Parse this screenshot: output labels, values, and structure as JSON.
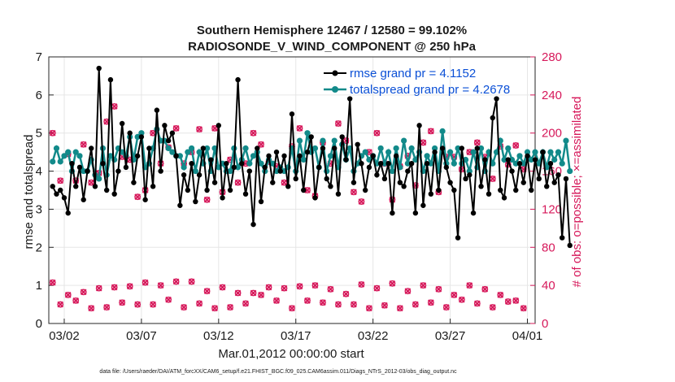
{
  "chart_data": {
    "type": "line",
    "title": "Southern Hemisphere 12467 / 12580 = 99.102%",
    "subtitle": "RADIOSONDE_V_WIND_COMPONENT @ 250 hPa",
    "xlabel": "Mar.01,2012 00:00:00 start",
    "ylabel": "rmse and totalspread",
    "y2label": "# of obs: o=possible; ×=assimilated",
    "xlim": [
      0,
      31.5
    ],
    "ylim": [
      0,
      7
    ],
    "y2lim": [
      0,
      280
    ],
    "x_ticks": [
      {
        "pos": 1,
        "label": "03/02"
      },
      {
        "pos": 6,
        "label": "03/07"
      },
      {
        "pos": 11,
        "label": "03/12"
      },
      {
        "pos": 16,
        "label": "03/17"
      },
      {
        "pos": 21,
        "label": "03/22"
      },
      {
        "pos": 26,
        "label": "03/27"
      },
      {
        "pos": 31,
        "label": "04/01"
      }
    ],
    "y_ticks": [
      0,
      1,
      2,
      3,
      4,
      5,
      6,
      7
    ],
    "y2_ticks": [
      0,
      40,
      80,
      120,
      160,
      200,
      240,
      280
    ],
    "legend_position": "top-right",
    "footnote": "data file: /Users/raeder/DAI/ATM_forcXX/CAM6_setup/f.e21.FHIST_BGC.f09_025.CAM6assim.011/Diags_NTrS_2012-03/obs_diag_output.nc",
    "colors": {
      "rmse": "#000000",
      "spread": "#128a8a",
      "obs": "#d6185a",
      "legend_text": "#0a4fd6"
    },
    "series": [
      {
        "name": "rmse grand pr = 4.1152",
        "x_start": 0.25,
        "x_step": 0.25,
        "values": [
          3.6,
          3.4,
          3.5,
          3.3,
          2.9,
          4.2,
          3.6,
          4.1,
          3.25,
          4.0,
          4.6,
          3.6,
          6.7,
          4.2,
          3.5,
          6.4,
          3.4,
          4.0,
          5.25,
          4.1,
          5.0,
          3.7,
          4.4,
          4.9,
          3.25,
          4.6,
          3.6,
          5.6,
          4.0,
          5.2,
          4.8,
          5.0,
          4.4,
          3.1,
          3.9,
          3.5,
          4.2,
          3.2,
          3.9,
          4.6,
          3.5,
          4.3,
          3.7,
          5.2,
          3.3,
          4.2,
          3.5,
          4.1,
          6.4,
          4.2,
          3.4,
          4.0,
          2.6,
          4.6,
          3.2,
          4.1,
          4.4,
          3.7,
          4.5,
          4.0,
          4.4,
          3.6,
          5.5,
          3.8,
          4.4,
          3.5,
          4.5,
          4.9,
          3.3,
          4.1,
          4.6,
          3.8,
          3.6,
          4.6,
          3.4,
          4.9,
          4.3,
          5.9,
          3.7,
          4.7,
          4.2,
          3.5,
          4.1,
          4.4,
          3.9,
          4.2,
          3.8,
          4.2,
          2.9,
          4.4,
          3.7,
          3.6,
          4.0,
          4.2,
          2.9,
          5.2,
          3.1,
          4.2,
          3.4,
          4.5,
          3.5,
          4.6,
          4.1,
          3.7,
          3.5,
          2.25,
          4.6,
          3.8,
          3.9,
          2.9,
          4.6,
          3.6,
          4.3,
          3.4,
          5.4,
          5.9,
          3.5,
          3.3,
          4.3,
          4.0,
          3.5,
          4.2,
          3.7,
          4.4,
          3.5,
          4.3,
          3.8,
          4.5,
          3.6,
          4.2,
          3.7,
          3.9,
          2.25,
          3.8,
          2.05
        ]
      },
      {
        "name": "totalspread grand pr = 4.2678",
        "x_start": 0.25,
        "x_step": 0.25,
        "values": [
          4.25,
          4.6,
          4.25,
          4.4,
          4.5,
          4.0,
          4.5,
          4.4,
          4.0,
          4.0,
          4.3,
          3.9,
          3.8,
          4.6,
          3.9,
          4.4,
          4.3,
          4.6,
          4.5,
          4.4,
          4.9,
          4.3,
          4.9,
          5.0,
          4.1,
          4.2,
          4.6,
          5.1,
          4.8,
          4.8,
          4.6,
          4.5,
          4.4,
          4.4,
          4.1,
          4.5,
          4.6,
          4.0,
          4.5,
          4.2,
          4.6,
          4.0,
          4.6,
          4.1,
          4.2,
          4.0,
          4.0,
          4.6,
          4.1,
          4.3,
          4.6,
          4.2,
          4.4,
          4.5,
          4.2,
          4.0,
          4.3,
          4.2,
          4.0,
          4.1,
          4.0,
          4.1,
          4.6,
          4.0,
          4.8,
          4.3,
          5.0,
          4.5,
          4.6,
          4.1,
          4.8,
          4.0,
          4.4,
          4.8,
          4.1,
          4.7,
          4.3,
          4.6,
          4.0,
          4.2,
          4.4,
          4.5,
          4.3,
          4.4,
          4.2,
          4.6,
          4.2,
          4.5,
          4.0,
          4.6,
          4.1,
          4.8,
          4.2,
          4.6,
          4.3,
          4.5,
          4.0,
          4.4,
          4.2,
          4.6,
          4.0,
          5.05,
          4.2,
          4.5,
          4.2,
          4.6,
          4.2,
          4.3,
          4.0,
          4.5,
          4.1,
          4.6,
          4.0,
          4.5,
          4.2,
          4.5,
          4.8,
          4.3,
          4.6,
          4.3,
          4.2,
          4.4,
          4.2,
          4.5,
          4.3,
          4.5,
          4.2,
          4.5,
          4.1,
          4.5,
          4.3,
          4.5,
          4.2,
          4.8,
          4.0
        ]
      },
      {
        "name": "obs possible",
        "axis": "right",
        "x_start": 0.25,
        "x_step": 0.5,
        "values": [
          43,
          20,
          30,
          24,
          33,
          16,
          37,
          17,
          38,
          22,
          39,
          20,
          43,
          20,
          40,
          25,
          44,
          17,
          44,
          21,
          34,
          16,
          38,
          17,
          32,
          21,
          32,
          30,
          38,
          24,
          37,
          16,
          39,
          24,
          40,
          22,
          36,
          20,
          31,
          20,
          41,
          16,
          37,
          19,
          42,
          16,
          34,
          20,
          40,
          22,
          36,
          17,
          30,
          25,
          40,
          21,
          36,
          17,
          30,
          23,
          24,
          16
        ]
      },
      {
        "name": "obs assimilated",
        "axis": "right",
        "x_start": 0.25,
        "x_step": 0.5,
        "values": [
          43,
          20,
          30,
          24,
          33,
          16,
          37,
          17,
          38,
          22,
          39,
          20,
          43,
          20,
          40,
          25,
          44,
          17,
          44,
          21,
          34,
          16,
          38,
          17,
          32,
          21,
          32,
          30,
          38,
          24,
          37,
          16,
          39,
          24,
          40,
          22,
          36,
          20,
          31,
          20,
          41,
          16,
          37,
          19,
          42,
          16,
          34,
          20,
          40,
          22,
          36,
          17,
          30,
          25,
          40,
          21,
          36,
          17,
          30,
          23,
          24,
          16
        ]
      },
      {
        "name": "obs possible upper",
        "axis": "right",
        "x_start": 0.25,
        "x_step": 0.5,
        "values": [
          200,
          150,
          178,
          150,
          188,
          148,
          158,
          212,
          228,
          175,
          172,
          133,
          140,
          200,
          168,
          185,
          205,
          168,
          180,
          204,
          130,
          205,
          138,
          172,
          148,
          168,
          200,
          188,
          170,
          165,
          148,
          186,
          205,
          140,
          134,
          190,
          168,
          210,
          192,
          138,
          128,
          180,
          200,
          168,
          130,
          165,
          176,
          145,
          190,
          202,
          138,
          175,
          175,
          162,
          180,
          190,
          175,
          152,
          186,
          167,
          187,
          162
        ]
      },
      {
        "name": "obs assimilated upper",
        "axis": "right",
        "x_start": 0.25,
        "x_step": 0.5,
        "values": [
          200,
          150,
          178,
          150,
          188,
          148,
          158,
          212,
          228,
          175,
          172,
          133,
          140,
          200,
          168,
          185,
          205,
          168,
          180,
          204,
          130,
          205,
          138,
          172,
          148,
          168,
          200,
          188,
          170,
          165,
          148,
          186,
          205,
          140,
          134,
          190,
          168,
          210,
          192,
          138,
          128,
          180,
          200,
          168,
          130,
          165,
          176,
          145,
          190,
          202,
          138,
          175,
          175,
          162,
          180,
          190,
          175,
          152,
          186,
          167,
          187,
          162
        ]
      }
    ]
  }
}
